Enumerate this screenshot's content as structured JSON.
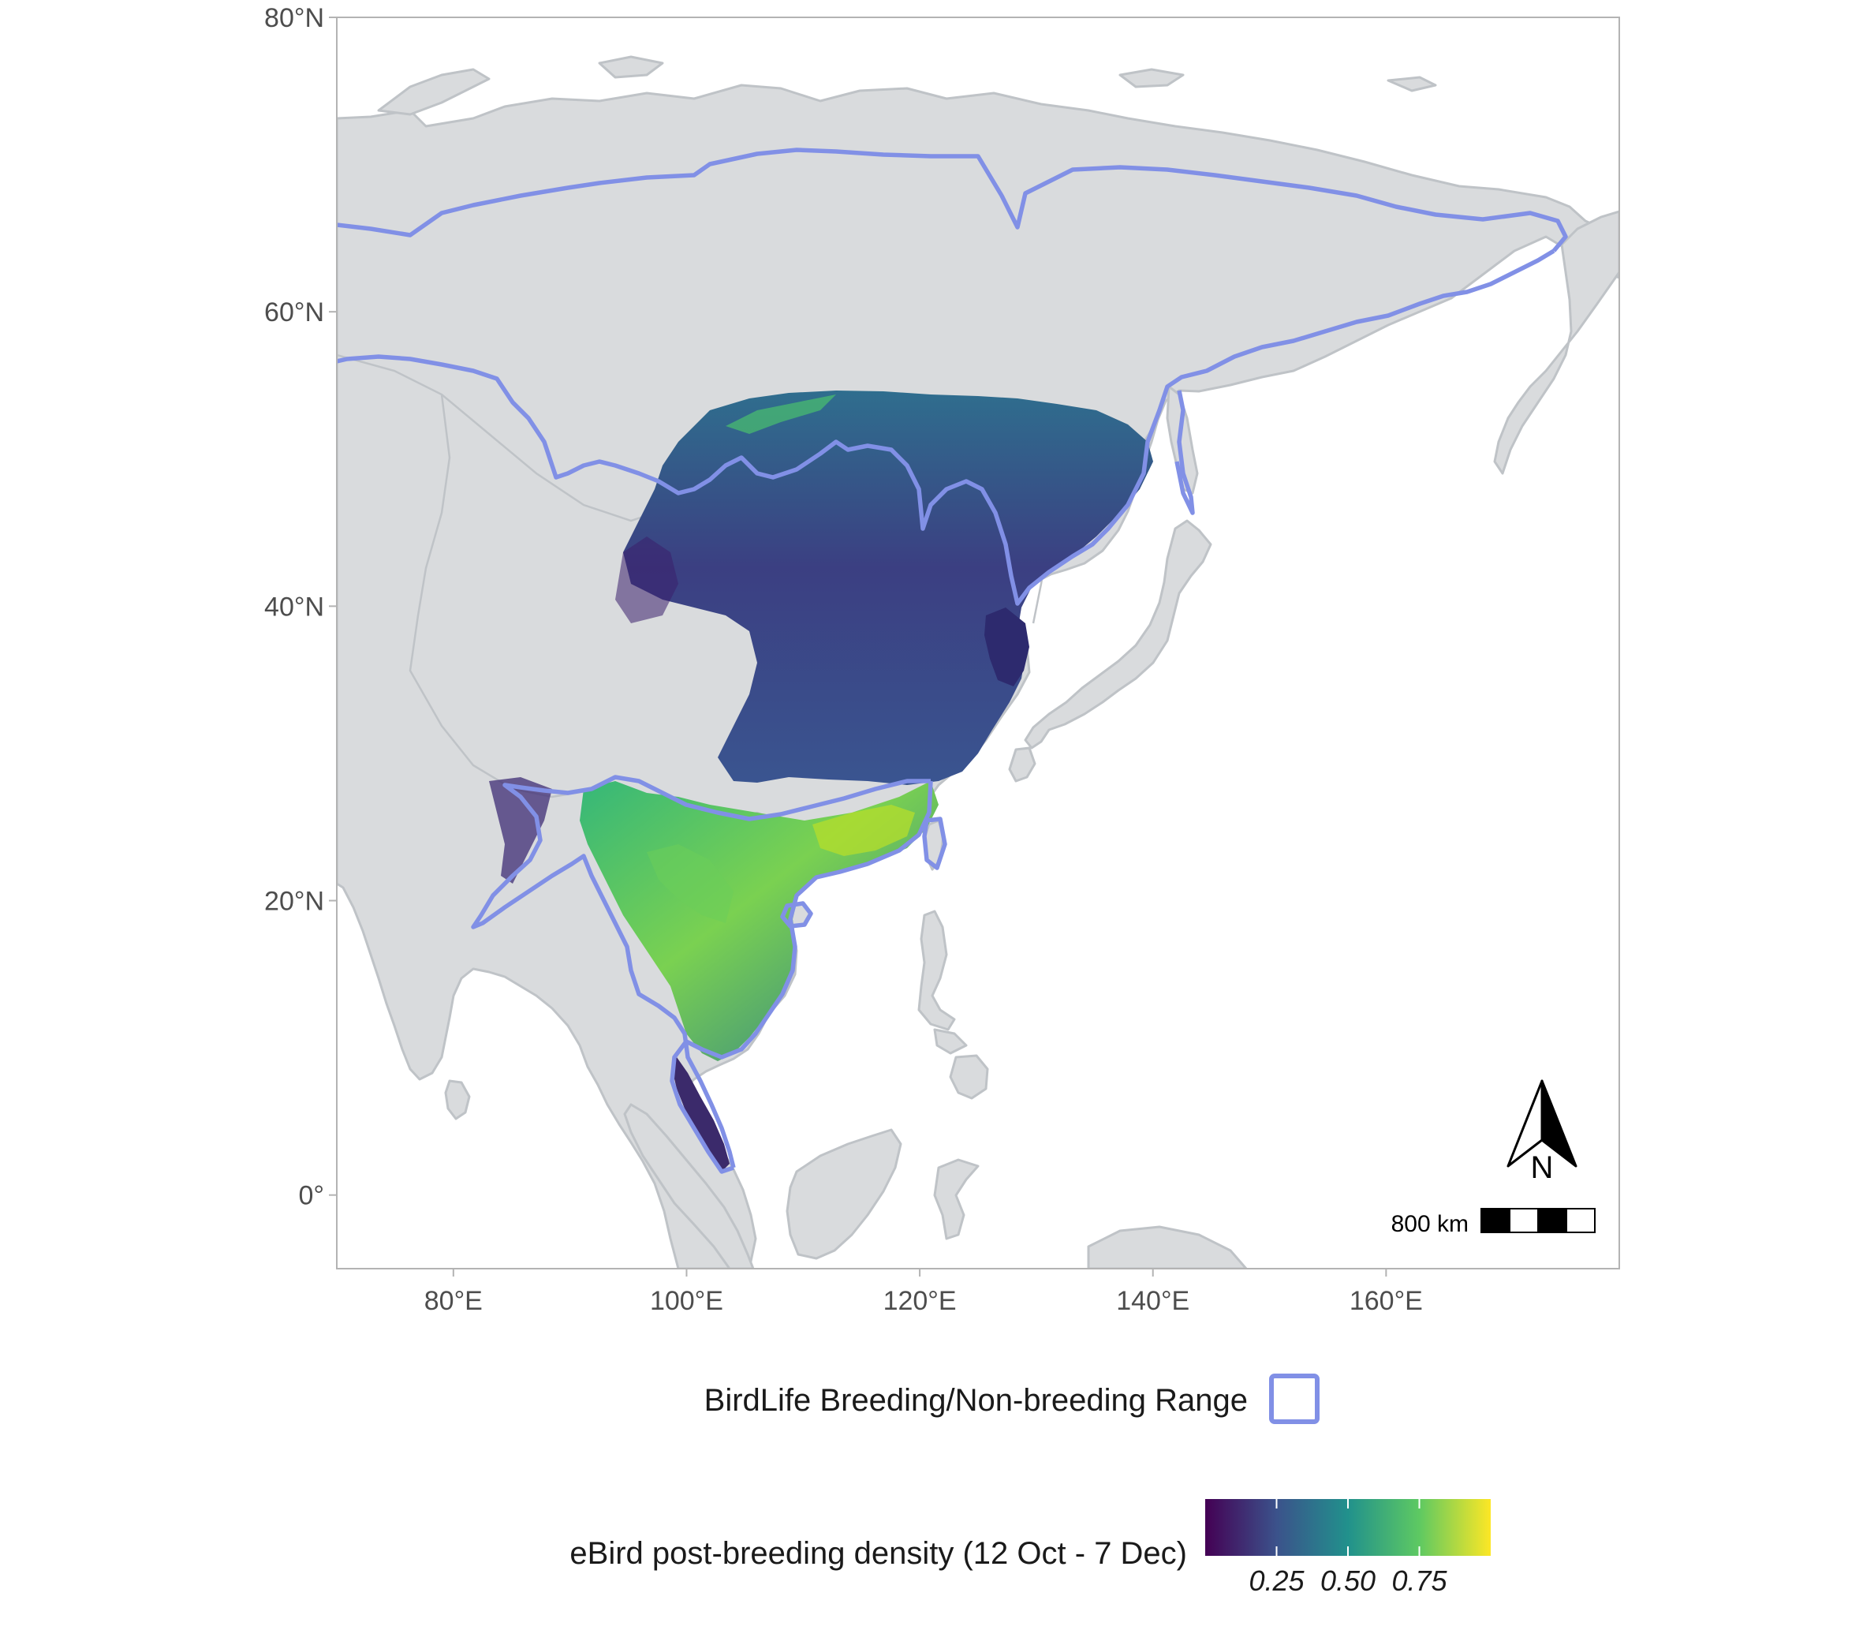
{
  "map": {
    "lat_axis": {
      "labels": [
        "80°N",
        "60°N",
        "40°N",
        "20°N",
        "0°"
      ],
      "values": [
        80,
        60,
        40,
        20,
        0
      ]
    },
    "lon_axis": {
      "labels": [
        "80°E",
        "100°E",
        "120°E",
        "140°E",
        "160°E"
      ],
      "values": [
        80,
        100,
        120,
        140,
        160
      ]
    },
    "extent": {
      "lon": [
        70,
        180
      ],
      "lat": [
        -5,
        80
      ]
    },
    "colors": {
      "land": "#d9dbdd",
      "land_border": "#bfc3c7",
      "range_outline": "#8190e6",
      "frame": "#b3b3b3",
      "ocean": "#ffffff"
    },
    "north_arrow": {
      "letter": "N",
      "icon": "north-arrow-icon"
    },
    "scale_bar": {
      "label": "800 km",
      "segments": 4
    }
  },
  "legend": {
    "range_label": "BirdLife Breeding/Non-breeding Range",
    "density_label": "eBird post-breeding density (12 Oct - 7 Dec)",
    "colorbar": {
      "ticks": [
        "0.25",
        "0.50",
        "0.75"
      ],
      "tick_values": [
        0.25,
        0.5,
        0.75
      ],
      "stops": [
        "#440154",
        "#3b528b",
        "#21918c",
        "#5ec962",
        "#fde725"
      ]
    }
  }
}
